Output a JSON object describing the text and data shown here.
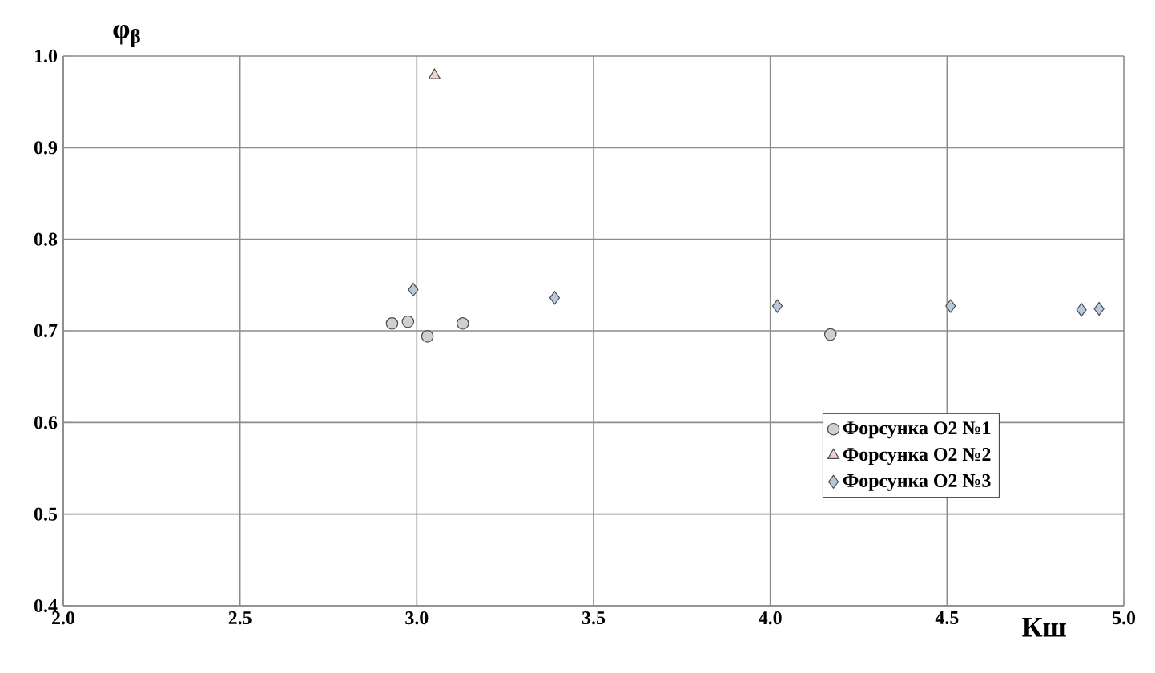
{
  "chart_data": {
    "type": "scatter",
    "xlabel": "Кш",
    "ylabel": "φ$_{β}$",
    "xlim": [
      2.0,
      5.0
    ],
    "ylim": [
      0.4,
      1.0
    ],
    "xticks": [
      {
        "value": 2,
        "label": "2.0"
      },
      2.5,
      {
        "value": 3,
        "label": "3.0"
      },
      3.5,
      {
        "value": 4,
        "label": "4.0"
      },
      4.5,
      {
        "value": 5,
        "label": "5.0"
      }
    ],
    "yticks": [
      0.4,
      0.5,
      0.6,
      0.7,
      0.8,
      0.9,
      {
        "value": 1,
        "label": "1.0"
      }
    ],
    "grid": true,
    "legend": "bottom right",
    "series": [
      {
        "name": "Форсунка О2 №1",
        "color": "#d0d0d0",
        "marker": "circle",
        "x": [
          2.93,
          2.975,
          3.03,
          3.13,
          4.17
        ],
        "values": [
          0.708,
          0.71,
          0.694,
          0.708,
          0.696
        ]
      },
      {
        "name": "Форсунка О2 №2",
        "color": "#f2d0d0",
        "marker": "triangle",
        "x": [
          3.05
        ],
        "values": [
          0.979
        ]
      },
      {
        "name": "Форсунка О2 №3",
        "color": "#b8c8e0",
        "marker": "diamond",
        "x": [
          2.99,
          3.39,
          4.02,
          4.51,
          4.88,
          4.93
        ],
        "values": [
          0.745,
          0.736,
          0.727,
          0.727,
          0.723,
          0.724
        ]
      }
    ]
  }
}
